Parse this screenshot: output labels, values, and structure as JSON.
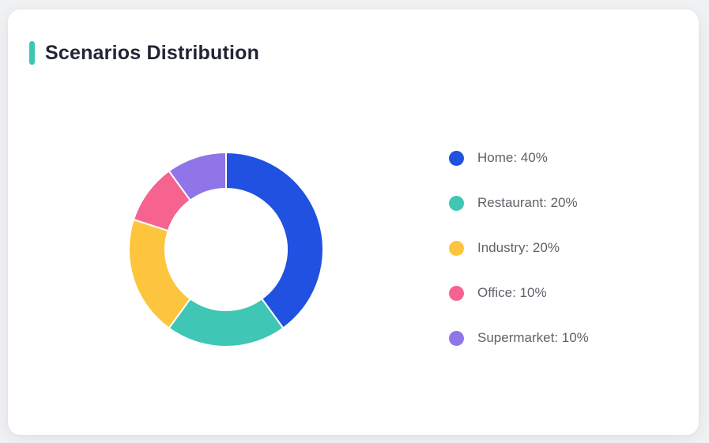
{
  "page": {
    "background_color": "#eff1f3",
    "card_background_color": "#ffffff"
  },
  "header": {
    "title": "Scenarios Distribution",
    "accent_color": "#3ec6b3",
    "title_color": "#1f2633"
  },
  "chart_data": {
    "type": "pie",
    "donut": true,
    "title": "Scenarios Distribution",
    "legend_position": "right",
    "legend_format": "{label}: {value}%",
    "unit": "%",
    "start_angle_deg": 0,
    "clockwise": true,
    "inner_radius_ratio": 0.63,
    "segment_border_color": "#ffffff",
    "segments": [
      {
        "label": "Home",
        "value": 40,
        "color": "#2051e0"
      },
      {
        "label": "Restaurant",
        "value": 20,
        "color": "#3fc6b4"
      },
      {
        "label": "Industry",
        "value": 20,
        "color": "#fdc43d"
      },
      {
        "label": "Office",
        "value": 10,
        "color": "#f6638f"
      },
      {
        "label": "Supermarket",
        "value": 10,
        "color": "#8f75e8"
      }
    ]
  }
}
